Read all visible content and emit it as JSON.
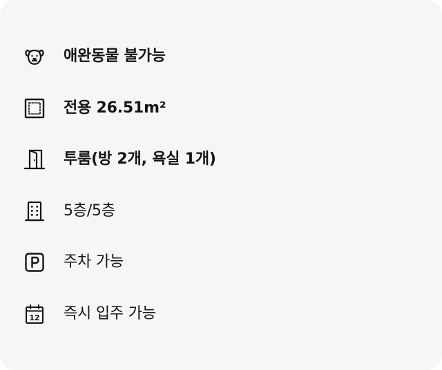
{
  "features": [
    {
      "icon": "pet-face-icon",
      "label": "애완동물 불가능",
      "emphasis": "bold"
    },
    {
      "icon": "floor-area-icon",
      "label": "전용 26.51m²",
      "emphasis": "bold"
    },
    {
      "icon": "door-icon",
      "label": "투룸(방 2개, 욕실 1개)",
      "emphasis": "bold"
    },
    {
      "icon": "building-icon",
      "label": "5층/5층",
      "emphasis": "regular"
    },
    {
      "icon": "parking-icon",
      "label": "주차 가능",
      "emphasis": "regular"
    },
    {
      "icon": "calendar-icon",
      "label": "즉시 입주 가능",
      "emphasis": "regular",
      "calendar_day": "12"
    }
  ]
}
